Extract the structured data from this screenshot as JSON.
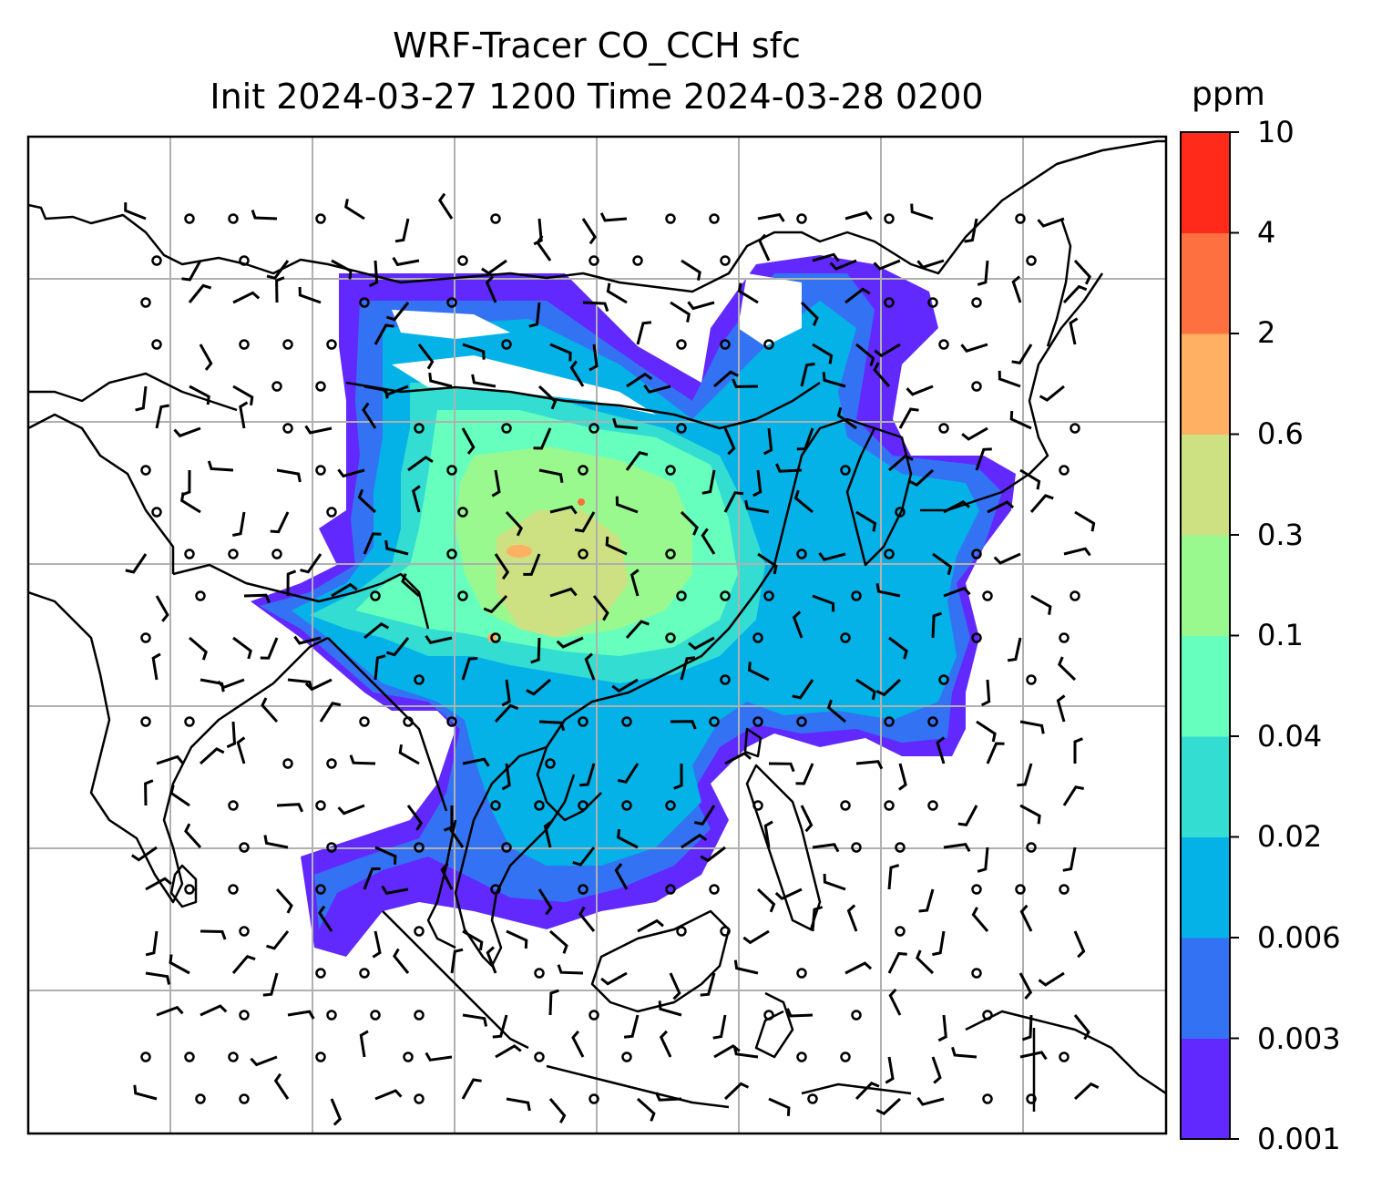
{
  "title": {
    "line1": "WRF-Tracer CO_CCH sfc",
    "line2": "Init 2024-03-27 1200 Time 2024-03-28 0200"
  },
  "colorbar": {
    "unit": "ppm",
    "ticks": [
      "0.001",
      "0.003",
      "0.006",
      "0.02",
      "0.04",
      "0.1",
      "0.3",
      "0.6",
      "2",
      "4",
      "10"
    ],
    "colors": [
      "#6229ff",
      "#3373f3",
      "#04b2e8",
      "#33ddd1",
      "#66ffbe",
      "#99f98f",
      "#cde182",
      "#ffb062",
      "#ff7040",
      "#ff2a1a"
    ]
  },
  "map": {
    "frame_color": "#000000",
    "grid_color": "#b0b0b0",
    "coastline_color": "#000000",
    "wind_symbol": "wind-barbs"
  }
}
